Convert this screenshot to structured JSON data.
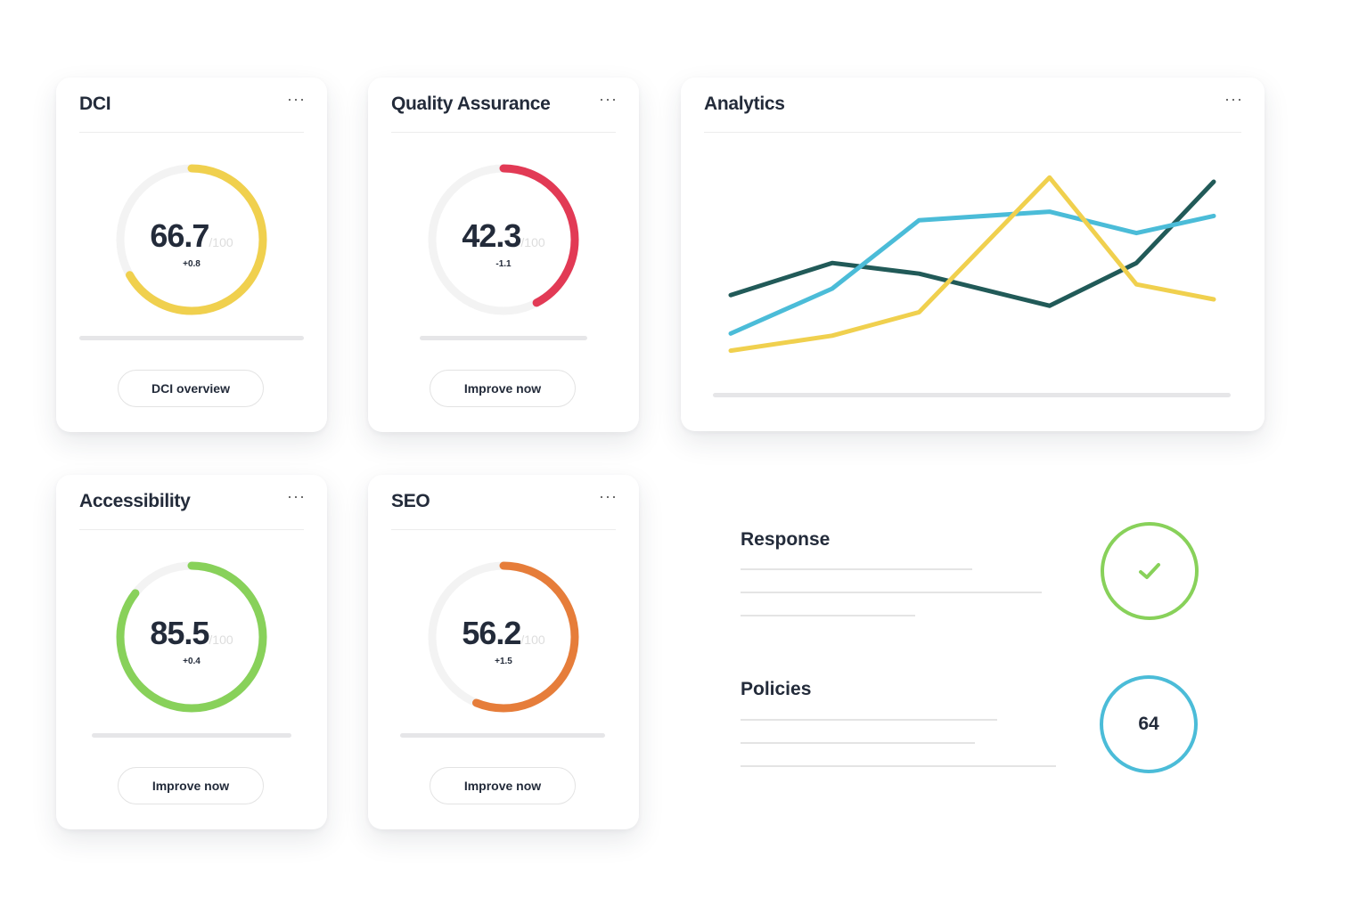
{
  "cards": [
    {
      "title": "DCI",
      "score": "66.7",
      "max": "/100",
      "delta": "+0.8",
      "fraction": 0.667,
      "color": "#f0d04e",
      "button": "DCI overview"
    },
    {
      "title": "Quality Assurance",
      "score": "42.3",
      "max": "/100",
      "delta": "-1.1",
      "fraction": 0.423,
      "color": "#e23a55",
      "button": "Improve now"
    },
    {
      "title": "Accessibility",
      "score": "85.5",
      "max": "/100",
      "delta": "+0.4",
      "fraction": 0.855,
      "color": "#88d15a",
      "button": "Improve now"
    },
    {
      "title": "SEO",
      "score": "56.2",
      "max": "/100",
      "delta": "+1.5",
      "fraction": 0.562,
      "color": "#e67d3a",
      "button": "Improve now"
    }
  ],
  "more_label": "···",
  "analytics": {
    "title": "Analytics"
  },
  "chart_data": {
    "type": "line",
    "x": [
      0,
      21,
      39,
      66,
      84,
      100
    ],
    "ylim": [
      0,
      100
    ],
    "series": [
      {
        "name": "dark",
        "color": "#215a58",
        "values": [
          37,
          52,
          47,
          32,
          52,
          90
        ]
      },
      {
        "name": "blue",
        "color": "#4bbcd8",
        "values": [
          19,
          40,
          72,
          76,
          66,
          74
        ]
      },
      {
        "name": "yellow",
        "color": "#f0d04e",
        "values": [
          11,
          18,
          29,
          92,
          42,
          35
        ]
      }
    ]
  },
  "response": {
    "title": "Response",
    "status": "check"
  },
  "policies": {
    "title": "Policies",
    "value": "64"
  }
}
